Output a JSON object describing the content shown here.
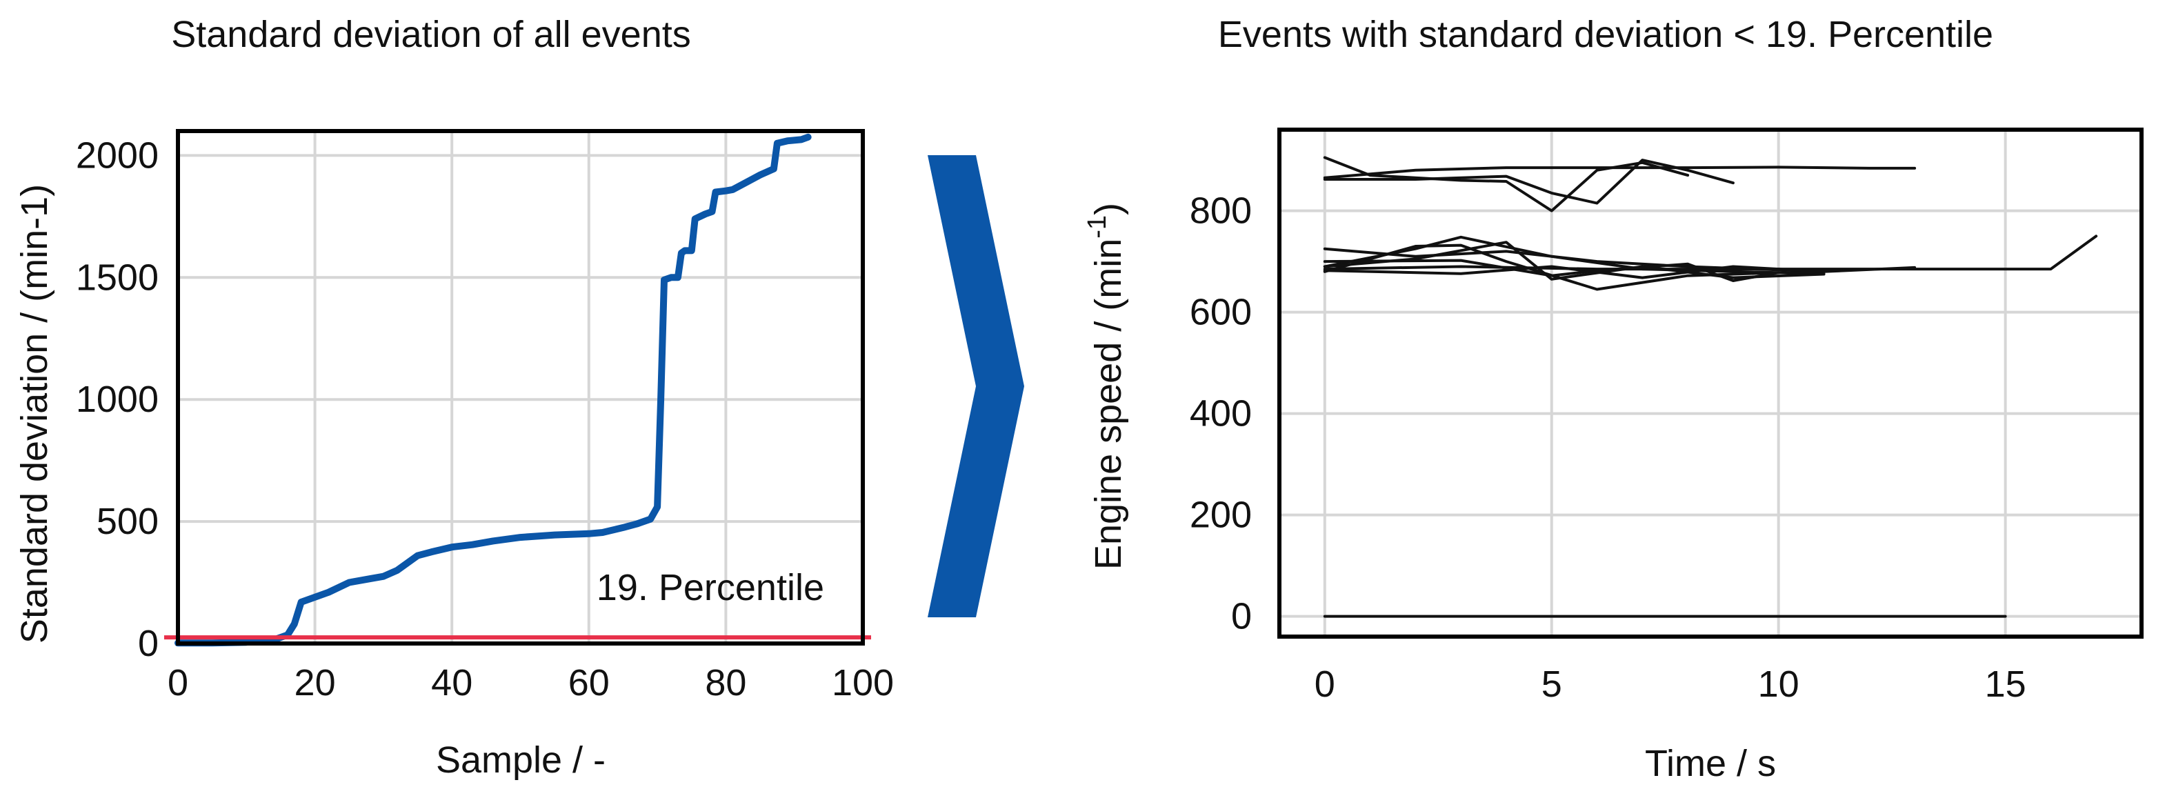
{
  "panels": [
    {
      "title": "Standard deviation of all events",
      "xlabel": "Sample / -",
      "ylabel": "Standard deviation / (min-1)",
      "annotation": "19. Percentile"
    },
    {
      "title": "Events with standard deviation < 19. Percentile",
      "xlabel": "Time / s",
      "ylabel_main": "Engine speed / (min",
      "ylabel_sup": "-1",
      "ylabel_tail": ")"
    }
  ],
  "colors": {
    "series": "#0b56a8",
    "threshold": "#e8304a",
    "arrow": "#0b56a8",
    "traces": "#111111",
    "grid": "#d6d6d6"
  },
  "chart_data": [
    {
      "type": "line",
      "title": "Standard deviation of all events",
      "xlabel": "Sample / -",
      "ylabel": "Standard deviation / (min-1)",
      "xlim": [
        0,
        100
      ],
      "ylim": [
        0,
        2100
      ],
      "xticks": [
        "0",
        "20",
        "40",
        "60",
        "80",
        "100"
      ],
      "yticks": [
        "0",
        "500",
        "1000",
        "1500",
        "2000"
      ],
      "xtick_values": [
        0,
        20,
        40,
        60,
        80,
        100
      ],
      "ytick_values": [
        0,
        500,
        1000,
        1500,
        2000
      ],
      "grid": true,
      "threshold": {
        "label": "19. Percentile",
        "value": 25
      },
      "series": [
        {
          "values": [
            [
              0,
              2
            ],
            [
              5,
              2
            ],
            [
              10,
              5
            ],
            [
              14,
              15
            ],
            [
              16,
              35
            ],
            [
              17,
              80
            ],
            [
              18,
              170
            ],
            [
              20,
              190
            ],
            [
              22,
              210
            ],
            [
              25,
              250
            ],
            [
              28,
              265
            ],
            [
              30,
              275
            ],
            [
              32,
              300
            ],
            [
              35,
              360
            ],
            [
              37,
              375
            ],
            [
              40,
              395
            ],
            [
              43,
              405
            ],
            [
              46,
              420
            ],
            [
              50,
              435
            ],
            [
              55,
              445
            ],
            [
              60,
              450
            ],
            [
              62,
              455
            ],
            [
              65,
              475
            ],
            [
              67,
              490
            ],
            [
              69,
              510
            ],
            [
              70,
              560
            ],
            [
              70.5,
              1000
            ],
            [
              71,
              1490
            ],
            [
              72,
              1500
            ],
            [
              73,
              1500
            ],
            [
              73.5,
              1600
            ],
            [
              74,
              1610
            ],
            [
              75,
              1610
            ],
            [
              75.5,
              1740
            ],
            [
              77,
              1760
            ],
            [
              78,
              1770
            ],
            [
              78.5,
              1850
            ],
            [
              80,
              1855
            ],
            [
              81,
              1860
            ],
            [
              83,
              1890
            ],
            [
              85,
              1920
            ],
            [
              87,
              1945
            ],
            [
              87.5,
              2050
            ],
            [
              89,
              2060
            ],
            [
              91,
              2065
            ],
            [
              92,
              2075
            ]
          ]
        }
      ]
    },
    {
      "type": "line",
      "title": "Events with standard deviation < 19. Percentile",
      "xlabel": "Time / s",
      "ylabel": "Engine speed / (min-1)",
      "xlim": [
        -1,
        18
      ],
      "ylim": [
        -40,
        960
      ],
      "xticks": [
        "0",
        "5",
        "10",
        "15"
      ],
      "yticks": [
        "0",
        "200",
        "400",
        "600",
        "800"
      ],
      "xtick_values": [
        0,
        5,
        10,
        15
      ],
      "ytick_values": [
        0,
        200,
        400,
        600,
        800
      ],
      "grid": true,
      "series": [
        {
          "values": [
            [
              0,
              865
            ],
            [
              2,
              880
            ],
            [
              4,
              885
            ],
            [
              6,
              885
            ],
            [
              8,
              885
            ],
            [
              10,
              886
            ],
            [
              12,
              884
            ],
            [
              13,
              884
            ]
          ]
        },
        {
          "values": [
            [
              0,
              905
            ],
            [
              1,
              870
            ],
            [
              3,
              860
            ],
            [
              4,
              858
            ],
            [
              5,
              800
            ],
            [
              6,
              880
            ],
            [
              7,
              895
            ],
            [
              8,
              870
            ]
          ]
        },
        {
          "values": [
            [
              0,
              862
            ],
            [
              2,
              862
            ],
            [
              4,
              868
            ],
            [
              5,
              835
            ],
            [
              6,
              815
            ],
            [
              7,
              900
            ],
            [
              8,
              880
            ],
            [
              9,
              855
            ]
          ]
        },
        {
          "values": [
            [
              0,
              685
            ],
            [
              3,
              690
            ],
            [
              6,
              685
            ],
            [
              9,
              685
            ],
            [
              12,
              685
            ],
            [
              16,
              685
            ],
            [
              17,
              750
            ]
          ]
        },
        {
          "values": [
            [
              0,
              725
            ],
            [
              2,
              710
            ],
            [
              4,
              720
            ],
            [
              6,
              700
            ],
            [
              8,
              690
            ],
            [
              11,
              680
            ]
          ]
        },
        {
          "values": [
            [
              0,
              690
            ],
            [
              2,
              725
            ],
            [
              3,
              748
            ],
            [
              5,
              710
            ],
            [
              7,
              685
            ],
            [
              9,
              680
            ],
            [
              11,
              676
            ]
          ]
        },
        {
          "values": [
            [
              0,
              680
            ],
            [
              2,
              730
            ],
            [
              3,
              732
            ],
            [
              4,
              700
            ],
            [
              6,
              645
            ],
            [
              8,
              672
            ],
            [
              10,
              678
            ]
          ]
        },
        {
          "values": [
            [
              0,
              690
            ],
            [
              2,
              705
            ],
            [
              4,
              738
            ],
            [
              5,
              665
            ],
            [
              7,
              690
            ],
            [
              9,
              668
            ],
            [
              11,
              675
            ]
          ]
        },
        {
          "values": [
            [
              0,
              682
            ],
            [
              3,
              676
            ],
            [
              5,
              690
            ],
            [
              7,
              668
            ],
            [
              9,
              690
            ],
            [
              11,
              680
            ],
            [
              13,
              688
            ]
          ]
        },
        {
          "values": [
            [
              0,
              700
            ],
            [
              3,
              702
            ],
            [
              5,
              672
            ],
            [
              6,
              682
            ],
            [
              8,
              695
            ],
            [
              9,
              662
            ],
            [
              10,
              678
            ]
          ]
        },
        {
          "values": [
            [
              0,
              0
            ],
            [
              5,
              0
            ],
            [
              10,
              0
            ],
            [
              15,
              0
            ]
          ]
        }
      ]
    }
  ]
}
